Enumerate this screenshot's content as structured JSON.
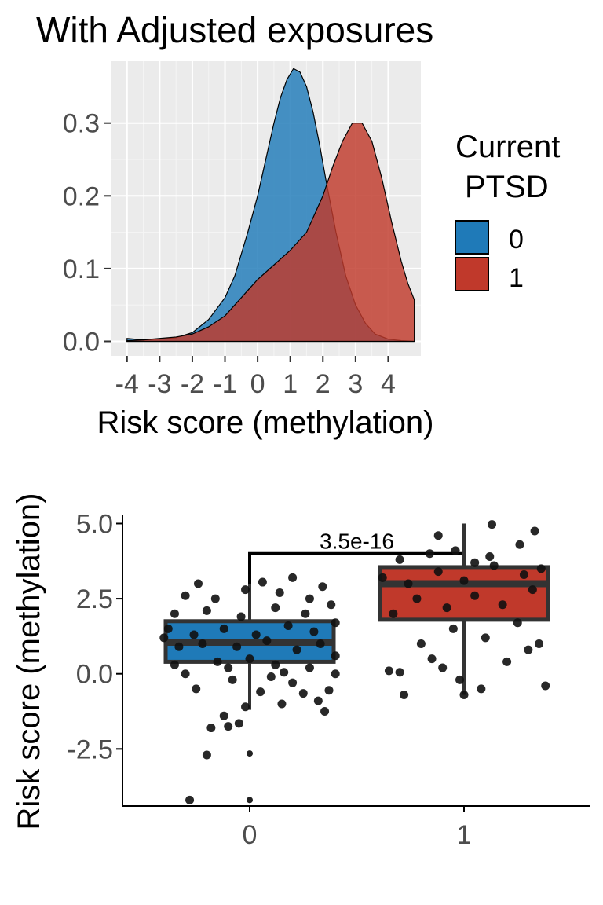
{
  "chart_data": [
    {
      "type": "area",
      "title": "With Adjusted exposures",
      "xlabel": "Risk score (methylation)",
      "ylabel": "",
      "xlim": [
        -4.5,
        5.0
      ],
      "ylim": [
        -0.02,
        0.385
      ],
      "x_ticks": [
        -4,
        -3,
        -2,
        -1,
        0,
        1,
        2,
        3,
        4
      ],
      "x_tick_labels": [
        "-4",
        "-3",
        "-2",
        "-1",
        "0",
        "1",
        "2",
        "3",
        "4"
      ],
      "y_ticks": [
        0.0,
        0.1,
        0.2,
        0.3
      ],
      "y_tick_labels": [
        "0.0",
        "0.1",
        "0.2",
        "0.3"
      ],
      "grid": true,
      "legend": {
        "title_lines": [
          "Current",
          "PTSD"
        ],
        "position": "right",
        "entries": [
          {
            "label": "0",
            "color": "#1f7ab8"
          },
          {
            "label": "1",
            "color": "#c0392b"
          }
        ]
      },
      "series": [
        {
          "name": "0",
          "color": "#1f7ab8",
          "x": [
            -4.0,
            -3.5,
            -3.0,
            -2.5,
            -2.0,
            -1.5,
            -1.0,
            -0.7,
            -0.5,
            -0.3,
            0.0,
            0.3,
            0.5,
            0.7,
            0.9,
            1.1,
            1.3,
            1.5,
            1.7,
            1.9,
            2.1,
            2.4,
            2.7,
            3.0,
            3.3,
            3.6,
            4.0,
            4.4,
            4.8
          ],
          "y": [
            0.004,
            0.002,
            0.003,
            0.005,
            0.012,
            0.03,
            0.06,
            0.09,
            0.12,
            0.15,
            0.2,
            0.26,
            0.3,
            0.335,
            0.36,
            0.375,
            0.37,
            0.35,
            0.315,
            0.27,
            0.22,
            0.15,
            0.09,
            0.05,
            0.025,
            0.01,
            0.003,
            0.001,
            0.0
          ]
        },
        {
          "name": "1",
          "color": "#c0392b",
          "x": [
            -4.0,
            -3.5,
            -3.0,
            -2.5,
            -2.0,
            -1.5,
            -1.0,
            -0.6,
            -0.3,
            0.0,
            0.5,
            1.0,
            1.5,
            2.0,
            2.3,
            2.6,
            2.9,
            3.2,
            3.5,
            3.8,
            4.1,
            4.4,
            4.6,
            4.8
          ],
          "y": [
            0.001,
            0.002,
            0.004,
            0.006,
            0.01,
            0.02,
            0.035,
            0.055,
            0.07,
            0.085,
            0.105,
            0.125,
            0.15,
            0.2,
            0.24,
            0.275,
            0.3,
            0.3,
            0.275,
            0.225,
            0.165,
            0.11,
            0.08,
            0.057
          ]
        }
      ]
    },
    {
      "type": "box",
      "title": "",
      "xlabel": "",
      "ylabel": "Risk score (methylation)",
      "ylim": [
        -4.4,
        5.3
      ],
      "categories": [
        "0",
        "1"
      ],
      "y_ticks": [
        -2.5,
        0.0,
        2.5,
        5.0
      ],
      "y_tick_labels": [
        "-2.5",
        "0.0",
        "2.5",
        "5.0"
      ],
      "grid": false,
      "annotation": {
        "text": "3.5e-16",
        "bracket_y": 4.0
      },
      "boxes": [
        {
          "category": "0",
          "color": "#1f7ab8",
          "q1": 0.4,
          "median": 1.05,
          "q3": 1.75,
          "whisker_low": -1.2,
          "whisker_high": 3.0,
          "outliers": [
            -2.65,
            -4.2
          ],
          "points": [
            [
              -0.28,
              -4.2
            ],
            [
              -0.2,
              -2.7
            ],
            [
              -0.18,
              -1.8
            ],
            [
              -0.1,
              -1.75
            ],
            [
              -0.05,
              -1.65
            ],
            [
              -0.12,
              -1.4
            ],
            [
              0.35,
              -1.25
            ],
            [
              -0.02,
              -1.1
            ],
            [
              0.15,
              -1.0
            ],
            [
              0.32,
              -0.9
            ],
            [
              -0.25,
              -0.5
            ],
            [
              0.05,
              -0.6
            ],
            [
              0.25,
              -0.65
            ],
            [
              0.37,
              -0.55
            ],
            [
              -0.3,
              0.0
            ],
            [
              -0.08,
              -0.2
            ],
            [
              0.1,
              -0.1
            ],
            [
              0.2,
              -0.3
            ],
            [
              0.4,
              0.0
            ],
            [
              -0.35,
              0.3
            ],
            [
              -0.15,
              0.4
            ],
            [
              0.0,
              0.5
            ],
            [
              0.12,
              0.3
            ],
            [
              0.28,
              0.2
            ],
            [
              -0.33,
              0.9
            ],
            [
              -0.22,
              1.0
            ],
            [
              -0.06,
              0.9
            ],
            [
              0.08,
              1.1
            ],
            [
              0.22,
              0.8
            ],
            [
              0.33,
              1.0
            ],
            [
              -0.38,
              1.5
            ],
            [
              -0.26,
              1.3
            ],
            [
              -0.12,
              1.5
            ],
            [
              0.03,
              1.3
            ],
            [
              0.18,
              1.6
            ],
            [
              0.3,
              1.4
            ],
            [
              0.4,
              1.7
            ],
            [
              -0.35,
              2.0
            ],
            [
              -0.2,
              2.1
            ],
            [
              -0.04,
              1.9
            ],
            [
              0.12,
              2.2
            ],
            [
              0.26,
              2.0
            ],
            [
              0.38,
              2.3
            ],
            [
              -0.3,
              2.6
            ],
            [
              -0.16,
              2.5
            ],
            [
              -0.02,
              2.8
            ],
            [
              0.14,
              2.7
            ],
            [
              0.28,
              2.5
            ],
            [
              -0.24,
              3.0
            ],
            [
              0.06,
              3.05
            ],
            [
              0.2,
              3.2
            ],
            [
              0.34,
              2.9
            ],
            [
              -0.4,
              1.2
            ],
            [
              0.4,
              0.6
            ],
            [
              -0.1,
              0.2
            ],
            [
              0.16,
              0.05
            ]
          ]
        },
        {
          "category": "1",
          "color": "#c0392b",
          "q1": 1.8,
          "median": 3.0,
          "q3": 3.55,
          "whisker_low": -0.7,
          "whisker_high": 5.0,
          "outliers": [],
          "points": [
            [
              -0.35,
              0.1
            ],
            [
              -0.28,
              -0.7
            ],
            [
              -0.3,
              0.05
            ],
            [
              -0.15,
              0.5
            ],
            [
              -0.1,
              0.2
            ],
            [
              -0.02,
              -0.2
            ],
            [
              0.0,
              -0.7
            ],
            [
              0.08,
              -0.5
            ],
            [
              0.3,
              0.8
            ],
            [
              0.38,
              -0.4
            ],
            [
              0.2,
              0.4
            ],
            [
              -0.2,
              1.0
            ],
            [
              -0.05,
              1.5
            ],
            [
              0.1,
              1.2
            ],
            [
              0.25,
              1.7
            ],
            [
              0.35,
              1.0
            ],
            [
              -0.33,
              2.0
            ],
            [
              -0.22,
              2.5
            ],
            [
              -0.08,
              2.2
            ],
            [
              0.05,
              2.6
            ],
            [
              0.18,
              2.3
            ],
            [
              0.32,
              2.8
            ],
            [
              -0.38,
              3.2
            ],
            [
              -0.26,
              3.0
            ],
            [
              -0.12,
              3.4
            ],
            [
              0.0,
              3.1
            ],
            [
              0.14,
              3.6
            ],
            [
              0.28,
              3.3
            ],
            [
              0.36,
              3.5
            ],
            [
              -0.3,
              3.8
            ],
            [
              -0.16,
              4.0
            ],
            [
              -0.04,
              4.1
            ],
            [
              0.12,
              3.9
            ],
            [
              0.26,
              4.3
            ],
            [
              0.13,
              4.97
            ],
            [
              0.33,
              4.75
            ],
            [
              -0.12,
              4.6
            ],
            [
              0.05,
              3.7
            ]
          ]
        }
      ]
    }
  ]
}
